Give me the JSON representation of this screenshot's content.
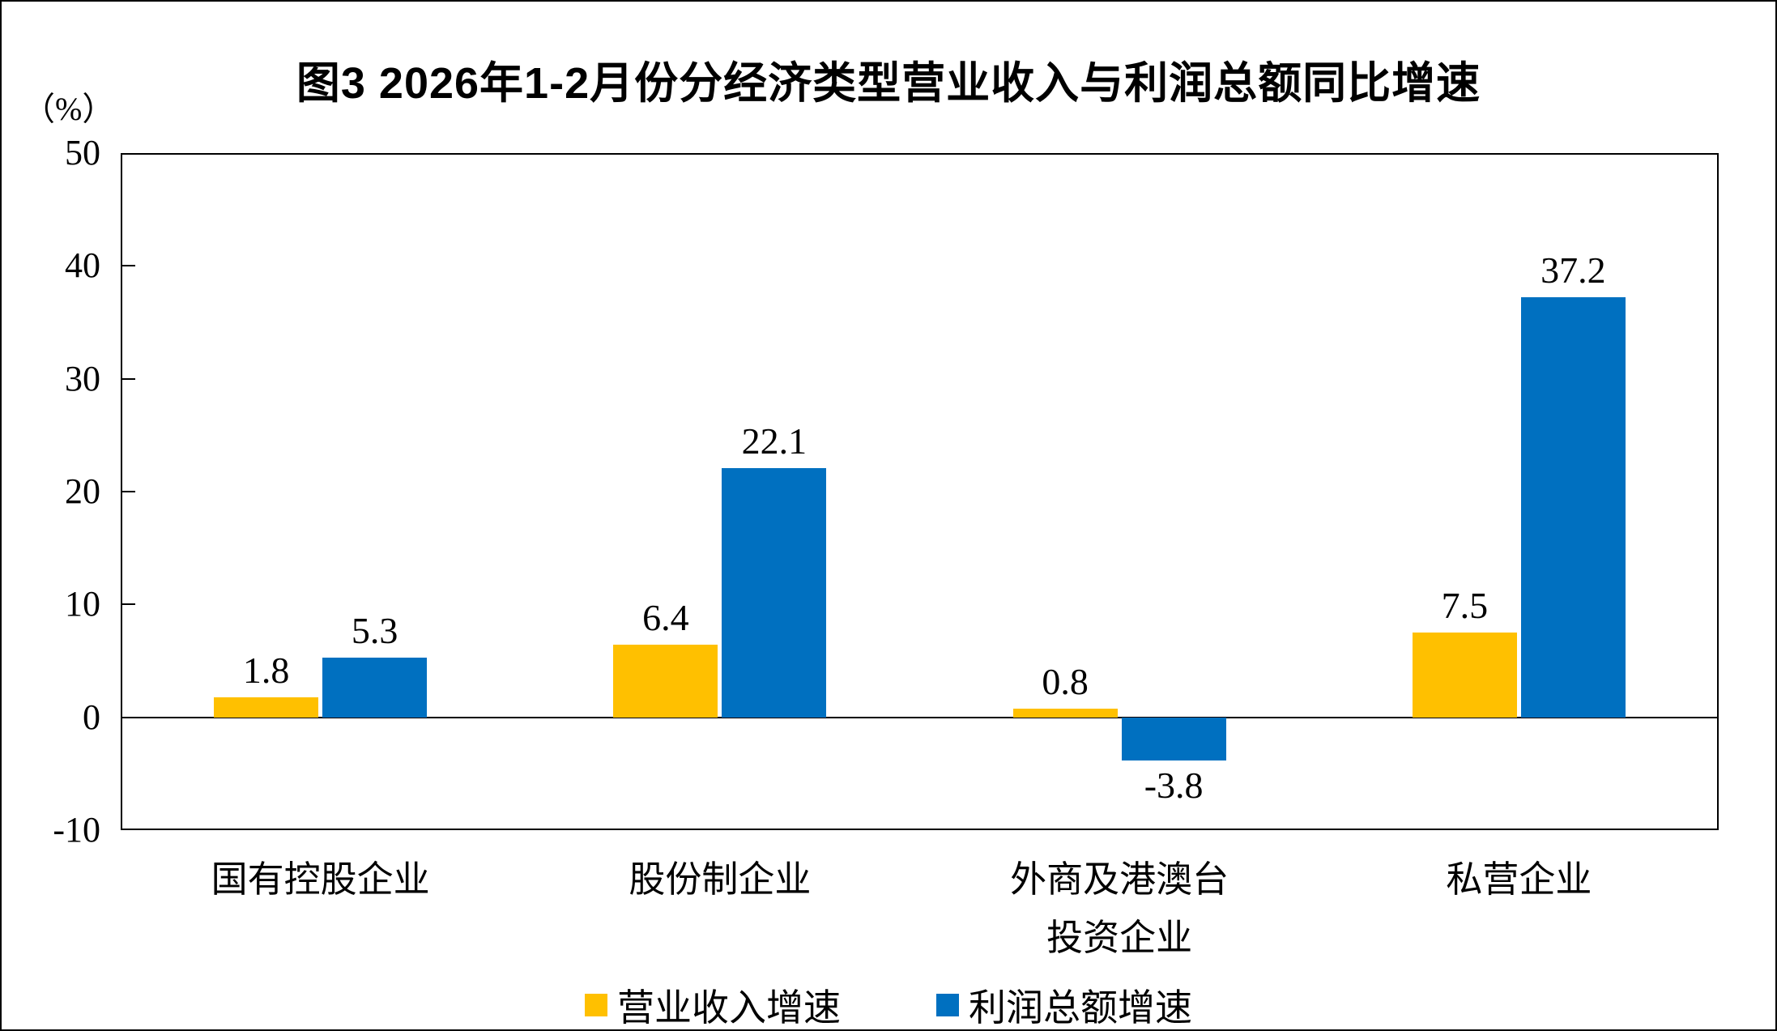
{
  "figure": {
    "unit_label": "（%）"
  },
  "chart_data": {
    "type": "bar",
    "title": "图3 2026年1-2月份分经济类型营业收入与利润总额同比增速",
    "unit": "（%）",
    "categories": [
      "国有控股企业",
      "股份制企业",
      "外商及港澳台\n投资企业",
      "私营企业"
    ],
    "series": [
      {
        "name": "营业收入增速",
        "color": "#FFC000",
        "values": [
          1.8,
          6.4,
          0.8,
          7.5
        ]
      },
      {
        "name": "利润总额增速",
        "color": "#0070C0",
        "values": [
          5.3,
          22.1,
          -3.8,
          37.2
        ]
      }
    ],
    "xlabel": "",
    "ylabel": "（%）",
    "ylim": [
      -10,
      50
    ],
    "yticks": [
      50,
      40,
      30,
      20,
      10,
      0,
      -10
    ],
    "inner_tick_values": [
      40,
      30,
      20,
      10
    ],
    "grid": false,
    "legend_position": "bottom",
    "bar_label_decimals": 1
  }
}
